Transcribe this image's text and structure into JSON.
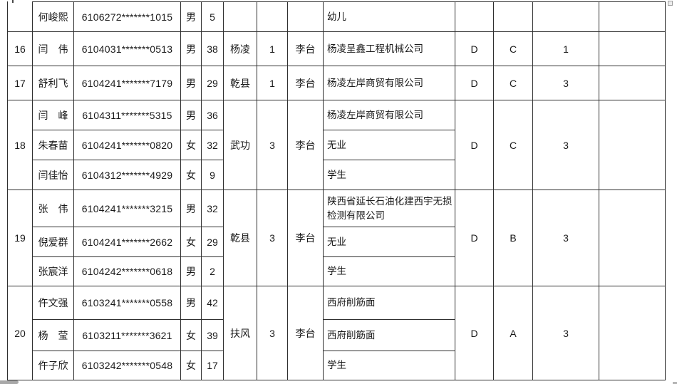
{
  "colors": {
    "page_background": "#ffffff",
    "grid_border": "#2f2f2f",
    "text": "#1a1a1a",
    "artifact_gray": "#a8a8a8"
  },
  "table": {
    "groups": [
      {
        "index": "",
        "town": "",
        "count": "",
        "village": "",
        "grade1": "",
        "grade2": "",
        "count2": "",
        "blank": "",
        "members": [
          {
            "name": "何峻熙",
            "id": "6106272*******1015",
            "gender": "男",
            "age": "5",
            "occupation": "幼儿"
          }
        ]
      },
      {
        "index": "16",
        "town": "杨凌",
        "count": "1",
        "village": "李台",
        "grade1": "D",
        "grade2": "C",
        "count2": "1",
        "blank": "",
        "members": [
          {
            "name": "闫　伟",
            "id": "6104031*******0513",
            "gender": "男",
            "age": "38",
            "occupation": "杨凌呈鑫工程机械公司"
          }
        ]
      },
      {
        "index": "17",
        "town": "乾县",
        "count": "1",
        "village": "李台",
        "grade1": "D",
        "grade2": "C",
        "count2": "3",
        "blank": "",
        "members": [
          {
            "name": "舒利飞",
            "id": "6104241*******7179",
            "gender": "男",
            "age": "29",
            "occupation": "杨凌左岸商贸有限公司"
          }
        ]
      },
      {
        "index": "18",
        "town": "武功",
        "count": "3",
        "village": "李台",
        "grade1": "D",
        "grade2": "C",
        "count2": "3",
        "blank": "",
        "members": [
          {
            "name": "闫　峰",
            "id": "6104311*******5315",
            "gender": "男",
            "age": "36",
            "occupation": "杨凌左岸商贸有限公司"
          },
          {
            "name": "朱春苗",
            "id": "6104241*******0820",
            "gender": "女",
            "age": "32",
            "occupation": "无业"
          },
          {
            "name": "闫佳怡",
            "id": "6104312*******4929",
            "gender": "女",
            "age": "9",
            "occupation": "学生"
          }
        ]
      },
      {
        "index": "19",
        "town": "乾县",
        "count": "3",
        "village": "李台",
        "grade1": "D",
        "grade2": "B",
        "count2": "3",
        "blank": "",
        "members": [
          {
            "name": "张　伟",
            "id": "6104241*******3215",
            "gender": "男",
            "age": "32",
            "occupation": "陕西省延长石油化建西宇无损检测有限公司"
          },
          {
            "name": "倪爱群",
            "id": "6104241*******2662",
            "gender": "女",
            "age": "29",
            "occupation": "无业"
          },
          {
            "name": "张宸洋",
            "id": "6104242*******0618",
            "gender": "男",
            "age": "2",
            "occupation": "学生"
          }
        ]
      },
      {
        "index": "20",
        "town": "扶风",
        "count": "3",
        "village": "李台",
        "grade1": "D",
        "grade2": "A",
        "count2": "3",
        "blank": "",
        "members": [
          {
            "name": "仵文强",
            "id": "6103241*******0558",
            "gender": "男",
            "age": "42",
            "occupation": "西府削筋面"
          },
          {
            "name": "杨　莹",
            "id": "6103211*******3621",
            "gender": "女",
            "age": "39",
            "occupation": "西府削筋面"
          },
          {
            "name": "仵子欣",
            "id": "6103242*******0548",
            "gender": "女",
            "age": "17",
            "occupation": "学生"
          }
        ]
      }
    ]
  }
}
